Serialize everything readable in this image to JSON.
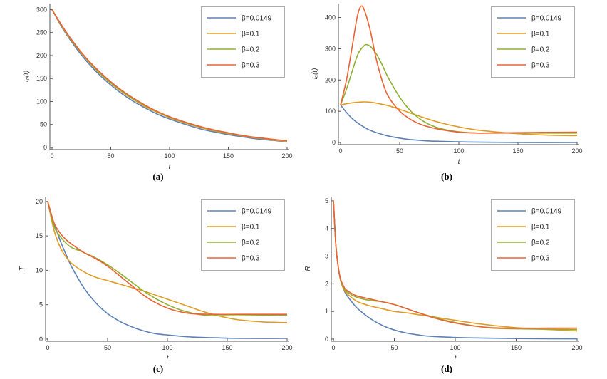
{
  "chart_data": [
    {
      "type": "line",
      "panel": "a",
      "caption": "(a)",
      "xlabel": "t",
      "ylabel": "Iₚ(t)",
      "xlim": [
        0,
        200
      ],
      "ylim": [
        0,
        310
      ],
      "xticks": [
        "0",
        "50",
        "100",
        "150",
        "200"
      ],
      "yticks": [
        "0",
        "50",
        "100",
        "150",
        "200",
        "250",
        "300"
      ],
      "legend_position": "top-right",
      "series": [
        {
          "name": "β=0.0149",
          "color": "#5e81b5",
          "x": [
            0,
            10,
            20,
            30,
            40,
            50,
            60,
            70,
            80,
            90,
            100,
            110,
            120,
            130,
            140,
            150,
            160,
            170,
            180,
            190,
            200
          ],
          "y": [
            300,
            255,
            218,
            186,
            159,
            136,
            116,
            99,
            85,
            72,
            62,
            53,
            45,
            38,
            33,
            28,
            24,
            20,
            17,
            15,
            12
          ]
        },
        {
          "name": "β=0.1",
          "color": "#e19c24",
          "x": [
            0,
            10,
            20,
            30,
            40,
            50,
            60,
            70,
            80,
            90,
            100,
            110,
            120,
            130,
            140,
            150,
            160,
            170,
            180,
            190,
            200
          ],
          "y": [
            300,
            257,
            221,
            190,
            163,
            140,
            120,
            103,
            88,
            76,
            65,
            56,
            48,
            41,
            35,
            30,
            26,
            22,
            19,
            16,
            13
          ]
        },
        {
          "name": "β=0.2",
          "color": "#8fb032",
          "x": [
            0,
            10,
            20,
            30,
            40,
            50,
            60,
            70,
            80,
            90,
            100,
            110,
            120,
            130,
            140,
            150,
            160,
            170,
            180,
            190,
            200
          ],
          "y": [
            300,
            258,
            222,
            191,
            164,
            141,
            121,
            104,
            90,
            77,
            66,
            57,
            49,
            42,
            36,
            31,
            27,
            23,
            20,
            17,
            14
          ]
        },
        {
          "name": "β=0.3",
          "color": "#eb6235",
          "x": [
            0,
            10,
            20,
            30,
            40,
            50,
            60,
            70,
            80,
            90,
            100,
            110,
            120,
            130,
            140,
            150,
            160,
            170,
            180,
            190,
            200
          ],
          "y": [
            300,
            259,
            223,
            192,
            166,
            143,
            123,
            106,
            91,
            78,
            67,
            58,
            50,
            43,
            37,
            32,
            27,
            23,
            20,
            17,
            15
          ]
        }
      ]
    },
    {
      "type": "line",
      "panel": "b",
      "caption": "(b)",
      "xlabel": "t",
      "ylabel": "Iₐ(t)",
      "xlim": [
        0,
        200
      ],
      "ylim": [
        0,
        440
      ],
      "xticks": [
        "0",
        "50",
        "100",
        "150",
        "200"
      ],
      "yticks": [
        "0",
        "100",
        "200",
        "300",
        "400"
      ],
      "legend_position": "top-right",
      "series": [
        {
          "name": "β=0.0149",
          "color": "#5e81b5",
          "x": [
            0,
            5,
            10,
            15,
            20,
            25,
            30,
            40,
            50,
            60,
            70,
            80,
            100,
            120,
            150,
            200
          ],
          "y": [
            120,
            96,
            76,
            61,
            49,
            39,
            32,
            21,
            14,
            9,
            6,
            4,
            2,
            1,
            0,
            0
          ]
        },
        {
          "name": "β=0.1",
          "color": "#e19c24",
          "x": [
            0,
            5,
            10,
            15,
            20,
            25,
            30,
            40,
            50,
            60,
            70,
            80,
            90,
            100,
            110,
            120,
            140,
            160,
            180,
            200
          ],
          "y": [
            120,
            124,
            127,
            129,
            130,
            129,
            126,
            118,
            106,
            93,
            80,
            68,
            58,
            50,
            43,
            38,
            31,
            26,
            23,
            22
          ]
        },
        {
          "name": "β=0.2",
          "color": "#8fb032",
          "x": [
            0,
            5,
            10,
            15,
            20,
            22,
            25,
            30,
            35,
            40,
            50,
            60,
            70,
            80,
            90,
            100,
            110,
            120,
            140,
            160,
            200
          ],
          "y": [
            120,
            170,
            230,
            285,
            310,
            313,
            308,
            285,
            250,
            210,
            145,
            98,
            68,
            50,
            40,
            34,
            31,
            30,
            30,
            30,
            30
          ]
        },
        {
          "name": "β=0.3",
          "color": "#eb6235",
          "x": [
            0,
            5,
            10,
            14,
            17,
            20,
            25,
            30,
            35,
            40,
            50,
            60,
            70,
            80,
            90,
            100,
            110,
            120,
            140,
            160,
            200
          ],
          "y": [
            120,
            200,
            310,
            400,
            435,
            425,
            360,
            270,
            200,
            150,
            100,
            72,
            55,
            45,
            38,
            33,
            31,
            30,
            31,
            32,
            33
          ]
        }
      ]
    },
    {
      "type": "line",
      "panel": "c",
      "caption": "(c)",
      "xlabel": "t",
      "ylabel": "T",
      "xlim": [
        0,
        200
      ],
      "ylim": [
        0,
        20.5
      ],
      "xticks": [
        "0",
        "50",
        "100",
        "150",
        "200"
      ],
      "yticks": [
        "0",
        "5",
        "10",
        "15",
        "20"
      ],
      "legend_position": "top-right",
      "series": [
        {
          "name": "β=0.0149",
          "color": "#5e81b5",
          "x": [
            0,
            5,
            10,
            15,
            20,
            30,
            40,
            50,
            60,
            70,
            80,
            90,
            100,
            120,
            140,
            160,
            200
          ],
          "y": [
            20,
            17,
            14.5,
            12.4,
            10.5,
            7.5,
            5.3,
            3.7,
            2.6,
            1.8,
            1.2,
            0.8,
            0.6,
            0.3,
            0.2,
            0.1,
            0.1
          ]
        },
        {
          "name": "β=0.1",
          "color": "#e19c24",
          "x": [
            0,
            5,
            10,
            15,
            20,
            30,
            40,
            50,
            60,
            70,
            80,
            90,
            100,
            110,
            120,
            130,
            140,
            150,
            160,
            180,
            200
          ],
          "y": [
            20,
            16,
            13.5,
            12,
            11,
            9.8,
            9,
            8.5,
            8,
            7.5,
            7,
            6.4,
            5.8,
            5.2,
            4.6,
            4,
            3.5,
            3.1,
            2.8,
            2.5,
            2.4
          ]
        },
        {
          "name": "β=0.2",
          "color": "#8fb032",
          "x": [
            0,
            5,
            10,
            15,
            20,
            30,
            40,
            50,
            60,
            70,
            80,
            90,
            100,
            110,
            120,
            130,
            140,
            160,
            200
          ],
          "y": [
            20,
            16.5,
            15,
            14,
            13.3,
            12.6,
            11.8,
            10.8,
            9.6,
            8.3,
            7,
            5.9,
            5,
            4.3,
            3.8,
            3.5,
            3.4,
            3.4,
            3.5
          ]
        },
        {
          "name": "β=0.3",
          "color": "#eb6235",
          "x": [
            0,
            5,
            10,
            15,
            20,
            30,
            40,
            50,
            60,
            70,
            80,
            90,
            100,
            110,
            120,
            140,
            160,
            200
          ],
          "y": [
            20,
            17,
            15.5,
            14.5,
            13.8,
            12.6,
            11.7,
            10.6,
            9.2,
            7.8,
            6.4,
            5.3,
            4.5,
            4,
            3.7,
            3.6,
            3.6,
            3.6
          ]
        }
      ]
    },
    {
      "type": "line",
      "panel": "d",
      "caption": "(d)",
      "xlabel": "t",
      "ylabel": "R",
      "xlim": [
        0,
        200
      ],
      "ylim": [
        0,
        5.1
      ],
      "xticks": [
        "0",
        "50",
        "100",
        "150",
        "200"
      ],
      "yticks": [
        "0",
        "1",
        "2",
        "3",
        "4",
        "5"
      ],
      "legend_position": "top-right",
      "series": [
        {
          "name": "β=0.0149",
          "color": "#5e81b5",
          "x": [
            0,
            2,
            4,
            6,
            8,
            10,
            15,
            20,
            30,
            40,
            50,
            60,
            70,
            80,
            100,
            120,
            150,
            200
          ],
          "y": [
            5,
            3.4,
            2.6,
            2.1,
            1.85,
            1.65,
            1.35,
            1.1,
            0.75,
            0.5,
            0.33,
            0.22,
            0.15,
            0.1,
            0.06,
            0.04,
            0.02,
            0.01
          ]
        },
        {
          "name": "β=0.1",
          "color": "#e19c24",
          "x": [
            0,
            2,
            4,
            6,
            8,
            10,
            15,
            20,
            30,
            40,
            50,
            60,
            70,
            80,
            90,
            100,
            120,
            140,
            160,
            200
          ],
          "y": [
            5,
            3.4,
            2.6,
            2.1,
            1.85,
            1.7,
            1.5,
            1.35,
            1.2,
            1.1,
            1,
            0.95,
            0.88,
            0.82,
            0.75,
            0.68,
            0.55,
            0.45,
            0.38,
            0.3
          ]
        },
        {
          "name": "β=0.2",
          "color": "#8fb032",
          "x": [
            0,
            2,
            4,
            6,
            8,
            10,
            15,
            20,
            30,
            40,
            50,
            60,
            70,
            80,
            90,
            100,
            120,
            140,
            200
          ],
          "y": [
            5,
            3.4,
            2.6,
            2.1,
            1.9,
            1.75,
            1.6,
            1.5,
            1.4,
            1.35,
            1.25,
            1.1,
            0.95,
            0.82,
            0.7,
            0.6,
            0.45,
            0.38,
            0.35
          ]
        },
        {
          "name": "β=0.3",
          "color": "#eb6235",
          "x": [
            0,
            2,
            4,
            6,
            8,
            10,
            15,
            20,
            30,
            40,
            50,
            60,
            70,
            80,
            90,
            100,
            120,
            140,
            200
          ],
          "y": [
            5,
            3.4,
            2.6,
            2.15,
            1.95,
            1.8,
            1.65,
            1.55,
            1.45,
            1.35,
            1.25,
            1.1,
            0.95,
            0.8,
            0.68,
            0.58,
            0.45,
            0.4,
            0.4
          ]
        }
      ]
    }
  ]
}
